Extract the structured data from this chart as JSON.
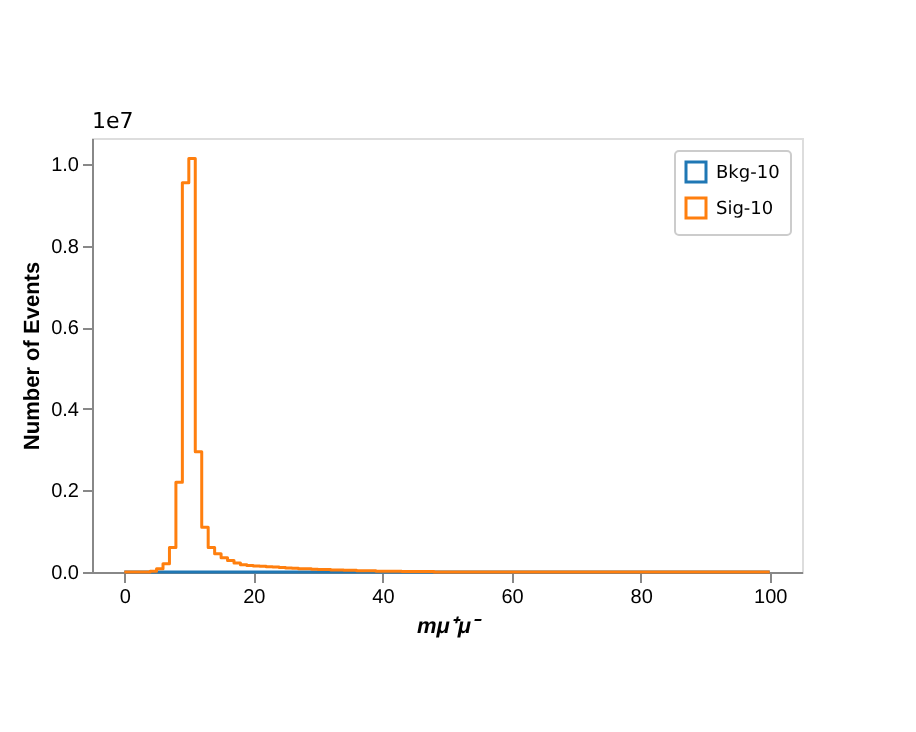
{
  "chart_data": {
    "type": "histogram",
    "xlabel": "mμ⁺μ⁻",
    "ylabel": "Number of Events",
    "annotations": [
      "1e7"
    ],
    "bins": [
      0,
      1,
      2,
      3,
      4,
      5,
      6,
      7,
      8,
      9,
      10,
      11,
      12,
      13,
      14,
      15,
      16,
      17,
      18,
      19,
      20,
      21,
      22,
      23,
      24,
      25,
      26,
      27,
      28,
      29,
      30,
      31,
      32,
      33,
      34,
      35,
      36,
      37,
      38,
      39,
      40,
      41,
      42,
      43,
      44,
      45,
      46,
      47,
      48,
      49,
      50,
      51,
      52,
      53,
      54,
      55,
      56,
      57,
      58,
      59,
      60,
      61,
      62,
      63,
      64,
      65,
      66,
      67,
      68,
      69,
      70,
      71,
      72,
      73,
      74,
      75,
      76,
      77,
      78,
      79,
      80,
      81,
      82,
      83,
      84,
      85,
      86,
      87,
      88,
      89,
      90,
      91,
      92,
      93,
      94,
      95,
      96,
      97,
      98,
      99,
      100
    ],
    "series": [
      {
        "name": "Bkg-10",
        "color": "#1f77b4",
        "values": [
          0,
          0,
          0,
          0,
          0,
          0,
          0,
          0,
          0,
          0,
          0,
          0,
          0,
          0,
          0,
          0,
          0,
          0,
          0,
          0,
          0,
          0,
          0,
          0,
          0,
          0,
          0,
          0,
          0,
          0,
          0,
          0,
          0,
          0,
          0,
          0,
          0,
          0,
          0,
          0,
          0,
          0,
          0,
          0,
          0,
          0,
          0,
          0,
          0,
          0,
          0,
          0,
          0,
          0,
          0,
          0,
          0,
          0,
          0,
          0,
          0,
          0,
          0,
          0,
          0,
          0,
          0,
          0,
          0,
          0,
          0,
          0,
          0,
          0,
          0,
          0,
          0,
          0,
          0,
          0,
          0,
          0,
          0,
          0,
          0,
          0,
          0,
          0,
          0,
          0,
          0,
          0,
          0,
          0,
          0,
          0,
          0,
          0,
          0,
          0
        ]
      },
      {
        "name": "Sig-10",
        "color": "#ff7f0e",
        "values": [
          0,
          0,
          0,
          0,
          0.002,
          0.008,
          0.02,
          0.06,
          0.22,
          0.955,
          1.015,
          0.295,
          0.11,
          0.06,
          0.045,
          0.035,
          0.028,
          0.022,
          0.018,
          0.016,
          0.015,
          0.014,
          0.013,
          0.012,
          0.011,
          0.01,
          0.009,
          0.008,
          0.008,
          0.007,
          0.006,
          0.006,
          0.005,
          0.005,
          0.004,
          0.004,
          0.003,
          0.003,
          0.003,
          0.002,
          0.002,
          0.002,
          0.002,
          0.001,
          0.001,
          0.001,
          0.001,
          0.001,
          0,
          0,
          0,
          0,
          0,
          0,
          0,
          0,
          0,
          0,
          0,
          0,
          0,
          0,
          0,
          0,
          0,
          0,
          0,
          0,
          0,
          0,
          0,
          0,
          0,
          0,
          0,
          0,
          0,
          0,
          0,
          0,
          0,
          0,
          0,
          0,
          0,
          0,
          0,
          0,
          0,
          0,
          0,
          0,
          0,
          0,
          0,
          0,
          0,
          0,
          0,
          0
        ]
      }
    ],
    "xlim": [
      -5,
      105
    ],
    "xticks": [
      0,
      20,
      40,
      60,
      80,
      100
    ],
    "ylim": [
      0,
      1.065
    ],
    "yticks": [
      {
        "value": 0,
        "label": "0.0"
      },
      0.2,
      0.4,
      0.6,
      0.8,
      {
        "value": 1,
        "label": "1.0"
      }
    ],
    "grid": false,
    "legend": "top right",
    "line_style": "solid"
  }
}
